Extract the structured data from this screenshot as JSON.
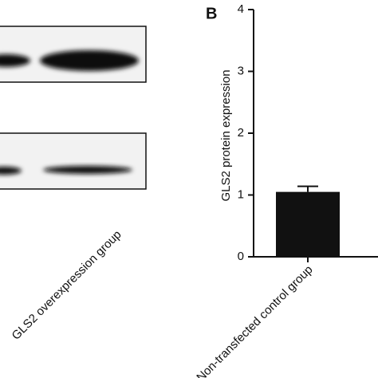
{
  "blot": {
    "lane_label": "GLS2 overexpression group"
  },
  "chart_data": {
    "type": "bar",
    "panel_label": "B",
    "ylabel": "GLS2 protein expression",
    "categories": [
      "Non-transfected control group"
    ],
    "values": [
      1.05
    ],
    "errors": [
      0.09
    ],
    "color": "#111111",
    "ylim": [
      0,
      4
    ],
    "yticks": [
      0,
      1,
      2,
      3,
      4
    ]
  }
}
